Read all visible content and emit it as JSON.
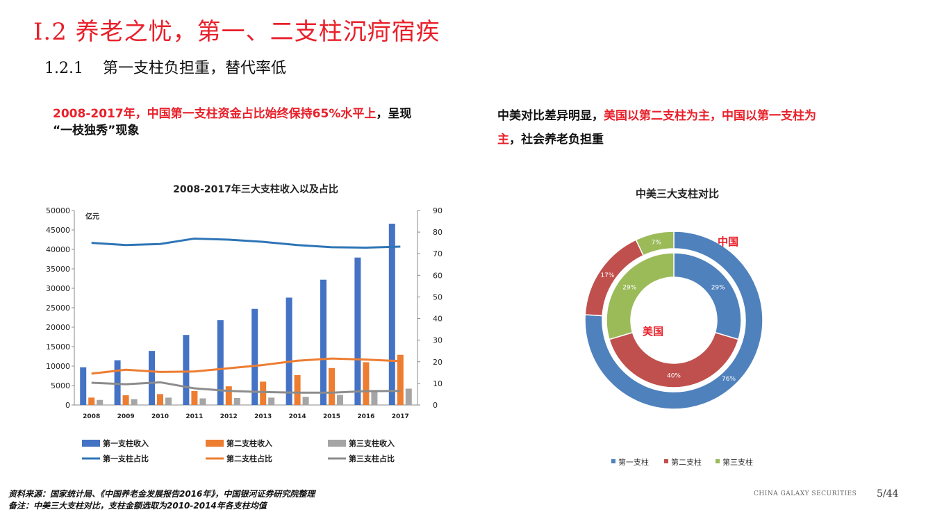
{
  "header": {
    "title": "I.2 养老之忧，第一、二支柱沉疴宿疾",
    "subtitle_number": "1.2.1",
    "subtitle_text": "第一支柱负担重，替代率低"
  },
  "left_note": {
    "red": "2008-2017年，中国第一支柱资金占比始终保持65%水平上",
    "black_1": "，呈现",
    "black_2": "“一枝独秀”现象"
  },
  "right_note": {
    "black_1": "中美对比差异明显，",
    "red_1": "美国以第二支柱为主，中国以第一支柱为",
    "red_2": "主",
    "black_2": "，社会养老负担重"
  },
  "chart_data": [
    {
      "type": "bar",
      "title": "2008-2017年三大支柱收入以及占比",
      "ylabel": "亿元",
      "ylim": [
        0,
        50000
      ],
      "y2lim": [
        0,
        90
      ],
      "yticks": [
        "0",
        "5000",
        "10000",
        "15000",
        "20000",
        "25000",
        "30000",
        "35000",
        "40000",
        "45000",
        "50000"
      ],
      "y2ticks": [
        "0",
        "10",
        "20",
        "30",
        "40",
        "50",
        "60",
        "70",
        "80",
        "90"
      ],
      "categories": [
        "2008",
        "2009",
        "2010",
        "2011",
        "2012",
        "2013",
        "2014",
        "2015",
        "2016",
        "2017"
      ],
      "series": [
        {
          "name": "第一支柱收入",
          "kind": "bar",
          "axis": "left",
          "color": "#4472c4",
          "values": [
            9700,
            11500,
            13900,
            18000,
            21800,
            24700,
            27600,
            32200,
            37900,
            46600
          ]
        },
        {
          "name": "第二支柱收入",
          "kind": "bar",
          "axis": "left",
          "color": "#ed7d31",
          "values": [
            1900,
            2500,
            2800,
            3600,
            4800,
            6000,
            7700,
            9500,
            11000,
            12900
          ]
        },
        {
          "name": "第三支柱收入",
          "kind": "bar",
          "axis": "left",
          "color": "#a5a5a5",
          "values": [
            1300,
            1500,
            1900,
            1700,
            1800,
            1900,
            2100,
            2600,
            3700,
            4200
          ]
        },
        {
          "name": "第一支柱占比",
          "kind": "line",
          "axis": "right",
          "color": "#2e75b6",
          "values": [
            75,
            74,
            74.5,
            77,
            76.5,
            75.5,
            74,
            73,
            72.8,
            73.3
          ]
        },
        {
          "name": "第二支柱占比",
          "kind": "line",
          "axis": "right",
          "color": "#ed7d31",
          "values": [
            14.5,
            16.3,
            15.3,
            15.5,
            17,
            18.5,
            20.5,
            21.5,
            21,
            20.3
          ]
        },
        {
          "name": "第三支柱占比",
          "kind": "line",
          "axis": "right",
          "color": "#8c8c8c",
          "values": [
            10.3,
            9.6,
            10.5,
            7.7,
            6.5,
            6,
            5.7,
            5.7,
            6.4,
            6.5
          ]
        }
      ],
      "legend": "bottom"
    },
    {
      "type": "pie",
      "title": "中美三大支柱对比",
      "rings": [
        {
          "name": "中国",
          "ring": "outer",
          "values": [
            76,
            17,
            7
          ],
          "labels": [
            "76%",
            "17%",
            "7%"
          ]
        },
        {
          "name": "美国",
          "ring": "inner",
          "values": [
            29,
            40,
            29
          ],
          "labels": [
            "29%",
            "40%",
            "29%"
          ]
        }
      ],
      "categories": [
        "第一支柱",
        "第二支柱",
        "第三支柱"
      ],
      "colors": [
        "#4f81bd",
        "#c0504d",
        "#9bbb59"
      ],
      "legend": "bottom"
    }
  ],
  "footer": {
    "line1": "资料来源：国家统计局、《中国养老金发展报告2016年》，中国银河证券研究院整理",
    "line2": "备注：中美三大支柱对比，支柱金额选取为2010-2014年各支柱均值"
  },
  "brand": "CHINA GALAXY SECURITIES",
  "page": "5/44"
}
